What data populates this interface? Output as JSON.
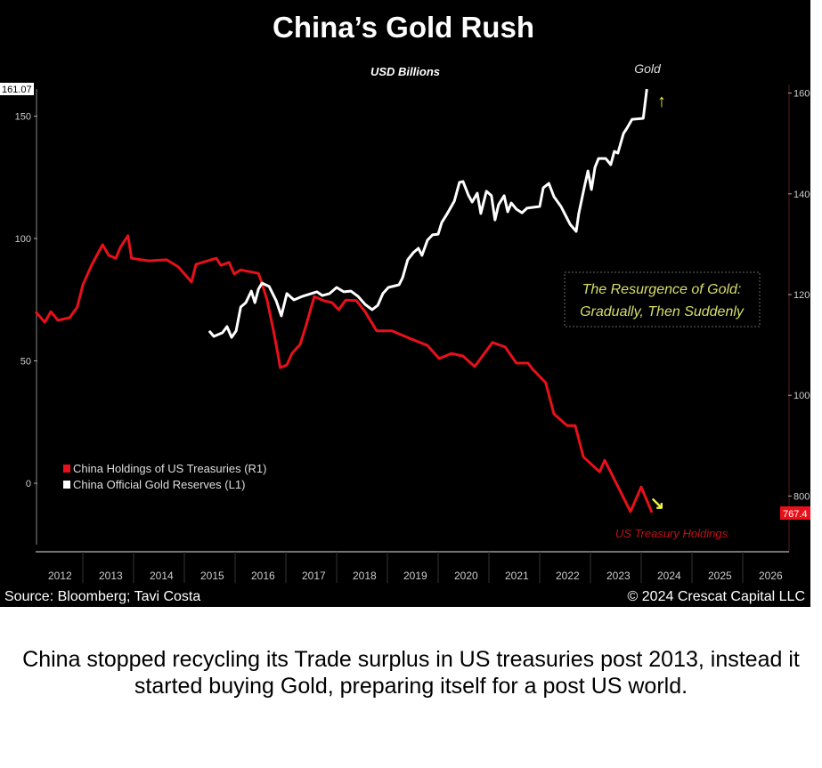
{
  "chart_data": {
    "type": "line",
    "title": "China’s Gold Rush",
    "subtitle": "USD Billions",
    "x_ticks": [
      "2012",
      "2013",
      "2014",
      "2015",
      "2016",
      "2017",
      "2018",
      "2019",
      "2020",
      "2021",
      "2022",
      "2023",
      "2024",
      "2025",
      "2026"
    ],
    "xlim": [
      2012,
      2027
    ],
    "left_axis": {
      "ticks": [
        "0",
        "50",
        "100",
        "150"
      ],
      "ylim": [
        -25,
        161.07
      ],
      "last_value_label": "161.07"
    },
    "right_axis": {
      "ticks": [
        "800",
        "1000",
        "1200",
        "1400",
        "1600"
      ],
      "last_value_label": "767.4"
    },
    "legend": {
      "placement": "bottom-left",
      "entries": [
        {
          "label": "China Holdings of US Treasuries (R1)",
          "color": "#e8101a"
        },
        {
          "label": "China Official Gold Reserves (L1)",
          "color": "#ffffff"
        }
      ]
    },
    "annotations": {
      "gold_label": "Gold",
      "gold_arrow": "↑",
      "treasury_label": "US Treasury Holdings",
      "treasury_arrow": "↘",
      "box_line1": "The Resurgence of Gold:",
      "box_line2": "Gradually, Then Suddenly"
    },
    "source": "Source: Bloomberg; Tavi Costa",
    "copyright": "© 2024 Crescat Capital LLC",
    "series": [
      {
        "name": "China Holdings of US Treasuries (R1)",
        "axis": "right",
        "color": "#e8101a",
        "points": [
          [
            2012.07,
            1166
          ],
          [
            2012.25,
            1145
          ],
          [
            2012.37,
            1166
          ],
          [
            2012.51,
            1149
          ],
          [
            2012.74,
            1154
          ],
          [
            2012.89,
            1175
          ],
          [
            2013.0,
            1219
          ],
          [
            2013.18,
            1260
          ],
          [
            2013.39,
            1299
          ],
          [
            2013.51,
            1278
          ],
          [
            2013.65,
            1272
          ],
          [
            2013.74,
            1294
          ],
          [
            2013.89,
            1317
          ],
          [
            2013.96,
            1272
          ],
          [
            2014.3,
            1267
          ],
          [
            2014.65,
            1269
          ],
          [
            2014.88,
            1255
          ],
          [
            2015.14,
            1225
          ],
          [
            2015.23,
            1260
          ],
          [
            2015.63,
            1272
          ],
          [
            2015.72,
            1258
          ],
          [
            2015.88,
            1264
          ],
          [
            2015.98,
            1241
          ],
          [
            2016.11,
            1249
          ],
          [
            2016.46,
            1242
          ],
          [
            2016.51,
            1228
          ],
          [
            2016.63,
            1189
          ],
          [
            2016.75,
            1131
          ],
          [
            2016.84,
            1083
          ],
          [
            2016.89,
            1055
          ],
          [
            2017.02,
            1060
          ],
          [
            2017.12,
            1083
          ],
          [
            2017.28,
            1101
          ],
          [
            2017.39,
            1136
          ],
          [
            2017.56,
            1196
          ],
          [
            2017.74,
            1188
          ],
          [
            2017.91,
            1184
          ],
          [
            2018.04,
            1170
          ],
          [
            2018.18,
            1189
          ],
          [
            2018.39,
            1188
          ],
          [
            2018.56,
            1166
          ],
          [
            2018.79,
            1128
          ],
          [
            2019.09,
            1128
          ],
          [
            2019.44,
            1113
          ],
          [
            2019.79,
            1099
          ],
          [
            2020.02,
            1073
          ],
          [
            2020.26,
            1083
          ],
          [
            2020.49,
            1078
          ],
          [
            2020.72,
            1057
          ],
          [
            2021.07,
            1105
          ],
          [
            2021.32,
            1096
          ],
          [
            2021.54,
            1064
          ],
          [
            2021.77,
            1064
          ],
          [
            2021.86,
            1052
          ],
          [
            2022.12,
            1025
          ],
          [
            2022.28,
            963
          ],
          [
            2022.54,
            940
          ],
          [
            2022.7,
            940
          ],
          [
            2022.86,
            878
          ],
          [
            2023.18,
            848
          ],
          [
            2023.28,
            871
          ],
          [
            2023.79,
            769
          ],
          [
            2024.0,
            818
          ],
          [
            2024.21,
            767.4
          ]
        ]
      },
      {
        "name": "China Official Gold Reserves (L1)",
        "axis": "left",
        "color": "#ffffff",
        "points": [
          [
            2015.49,
            62.2
          ],
          [
            2015.58,
            60.0
          ],
          [
            2015.75,
            61.5
          ],
          [
            2015.84,
            64.0
          ],
          [
            2015.93,
            59.6
          ],
          [
            2016.02,
            62.2
          ],
          [
            2016.11,
            72.0
          ],
          [
            2016.21,
            73.8
          ],
          [
            2016.32,
            78.5
          ],
          [
            2016.39,
            73.8
          ],
          [
            2016.46,
            79.3
          ],
          [
            2016.53,
            81.8
          ],
          [
            2016.67,
            80.4
          ],
          [
            2016.81,
            74.5
          ],
          [
            2016.91,
            68.4
          ],
          [
            2017.02,
            77.5
          ],
          [
            2017.16,
            74.9
          ],
          [
            2017.33,
            76.4
          ],
          [
            2017.61,
            78.2
          ],
          [
            2017.72,
            76.7
          ],
          [
            2017.86,
            77.5
          ],
          [
            2018.0,
            80.0
          ],
          [
            2018.14,
            78.2
          ],
          [
            2018.28,
            78.5
          ],
          [
            2018.42,
            76.4
          ],
          [
            2018.56,
            73.1
          ],
          [
            2018.7,
            70.9
          ],
          [
            2018.81,
            72.7
          ],
          [
            2018.91,
            77.5
          ],
          [
            2019.02,
            80.0
          ],
          [
            2019.23,
            81.1
          ],
          [
            2019.3,
            84.0
          ],
          [
            2019.4,
            91.3
          ],
          [
            2019.51,
            94.2
          ],
          [
            2019.61,
            96.0
          ],
          [
            2019.68,
            93.1
          ],
          [
            2019.79,
            99.3
          ],
          [
            2019.89,
            101.5
          ],
          [
            2020.0,
            101.8
          ],
          [
            2020.07,
            106.5
          ],
          [
            2020.18,
            110.2
          ],
          [
            2020.32,
            115.3
          ],
          [
            2020.42,
            122.9
          ],
          [
            2020.49,
            123.3
          ],
          [
            2020.6,
            117.5
          ],
          [
            2020.67,
            114.9
          ],
          [
            2020.77,
            118.5
          ],
          [
            2020.84,
            110.2
          ],
          [
            2020.95,
            119.3
          ],
          [
            2021.05,
            117.5
          ],
          [
            2021.12,
            107.6
          ],
          [
            2021.19,
            113.8
          ],
          [
            2021.3,
            117.5
          ],
          [
            2021.37,
            110.9
          ],
          [
            2021.44,
            114.5
          ],
          [
            2021.54,
            112.0
          ],
          [
            2021.65,
            110.5
          ],
          [
            2021.75,
            112.4
          ],
          [
            2022.0,
            113.1
          ],
          [
            2022.07,
            120.7
          ],
          [
            2022.18,
            122.5
          ],
          [
            2022.28,
            117.1
          ],
          [
            2022.42,
            113.1
          ],
          [
            2022.6,
            105.8
          ],
          [
            2022.72,
            102.9
          ],
          [
            2022.77,
            110.2
          ],
          [
            2022.88,
            121.1
          ],
          [
            2022.95,
            127.6
          ],
          [
            2023.02,
            120.0
          ],
          [
            2023.09,
            129.1
          ],
          [
            2023.16,
            132.7
          ],
          [
            2023.3,
            132.7
          ],
          [
            2023.4,
            130.2
          ],
          [
            2023.47,
            135.6
          ],
          [
            2023.54,
            134.9
          ],
          [
            2023.65,
            142.9
          ],
          [
            2023.72,
            145.1
          ],
          [
            2023.82,
            148.7
          ],
          [
            2024.04,
            149.1
          ],
          [
            2024.11,
            161.07
          ]
        ]
      }
    ]
  },
  "caption": "China stopped recycling its Trade surplus in US treasuries post 2013, instead it started buying Gold, preparing itself for a post US world."
}
